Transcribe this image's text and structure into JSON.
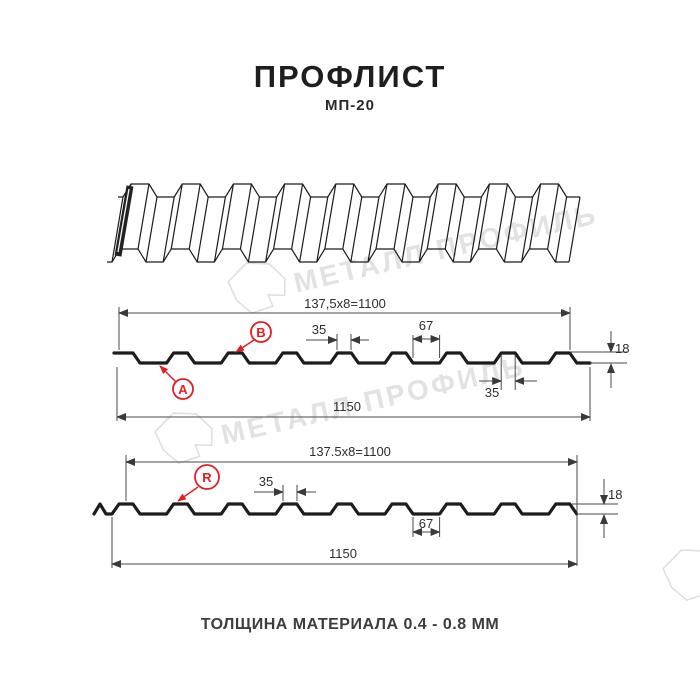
{
  "header": {
    "title": "ПРОФЛИСТ",
    "subtitle": "МП-20"
  },
  "watermark": {
    "brand": "МЕТАЛЛ ПРОФИЛЬ"
  },
  "sections": {
    "top": {
      "module_dim": "137,5x8=1100",
      "rib_top_width": "35",
      "rib_base_width": "67",
      "sheet_height": "18",
      "rib_top_width_lower": "35",
      "overall_width": "1150",
      "label_a": "A",
      "label_b": "B"
    },
    "bottom": {
      "module_dim": "137.5x8=1100",
      "rib_top_width": "35",
      "valley_width": "67",
      "sheet_height": "18",
      "overall_width": "1150",
      "label_r": "R"
    }
  },
  "footer": {
    "text": "ТОЛЩИНА МАТЕРИАЛА 0.4 - 0.8 ММ"
  },
  "colors": {
    "accent_red": "#e31e24",
    "drawing_line": "#1c1c1c",
    "dimension_line": "#4a4a4a",
    "watermark_gray": "#e2e2e2"
  }
}
